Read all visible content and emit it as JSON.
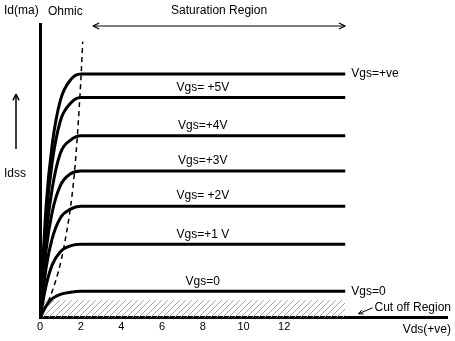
{
  "chart_data": {
    "type": "line",
    "x_label": "Vds(+ve)",
    "y_label": "Id(ma)",
    "annotations": {
      "ohmic": "Ohmic",
      "saturation": "Saturation Region",
      "cutoff": "Cut off Region",
      "idss": "Idss",
      "right_label": "Vgs=0"
    },
    "x": [
      0,
      0.3,
      0.6,
      1,
      1.5,
      2,
      15
    ],
    "series": [
      {
        "name": "Vgs=0",
        "color": "#000000",
        "values": [
          0,
          0.4,
          0.65,
          0.8,
          0.87,
          0.9,
          0.9
        ]
      },
      {
        "name": "Vgs=+1 V",
        "color": "#000000",
        "values": [
          0,
          1.1,
          1.8,
          2.25,
          2.45,
          2.5,
          2.5
        ]
      },
      {
        "name": "Vgs= +2V",
        "color": "#000000",
        "values": [
          0,
          1.7,
          2.7,
          3.4,
          3.7,
          3.8,
          3.8
        ]
      },
      {
        "name": "Vgs=+3V",
        "color": "#000000",
        "values": [
          0,
          2.3,
          3.6,
          4.5,
          4.9,
          5.0,
          5.0
        ]
      },
      {
        "name": "Vgs=+4V",
        "color": "#000000",
        "values": [
          0,
          2.8,
          4.4,
          5.6,
          6.05,
          6.2,
          6.2
        ]
      },
      {
        "name": "Vgs= +5V",
        "color": "#000000",
        "values": [
          0,
          3.4,
          5.3,
          6.7,
          7.3,
          7.5,
          7.5
        ]
      },
      {
        "name": "Vgs=+ve",
        "color": "#000000",
        "values": [
          0,
          3.8,
          5.9,
          7.4,
          8.1,
          8.3,
          8.3
        ]
      },
      {
        "color": "#000000",
        "line_style": "dashed",
        "x": [
          0,
          0.6,
          1.2,
          1.7,
          2,
          2.1
        ],
        "values": [
          0,
          0.9,
          2.5,
          5,
          8,
          9.4
        ]
      },
      {
        "type": "area",
        "color": "#a0a0a0",
        "x": [
          0,
          15
        ],
        "values": [
          0.6,
          0.6
        ]
      }
    ],
    "xlim": [
      0,
      20
    ],
    "xticks": [
      0,
      2,
      4,
      6,
      8,
      10,
      12
    ],
    "ylim": [
      0,
      10
    ],
    "grid": false,
    "tick_labels": "x"
  }
}
